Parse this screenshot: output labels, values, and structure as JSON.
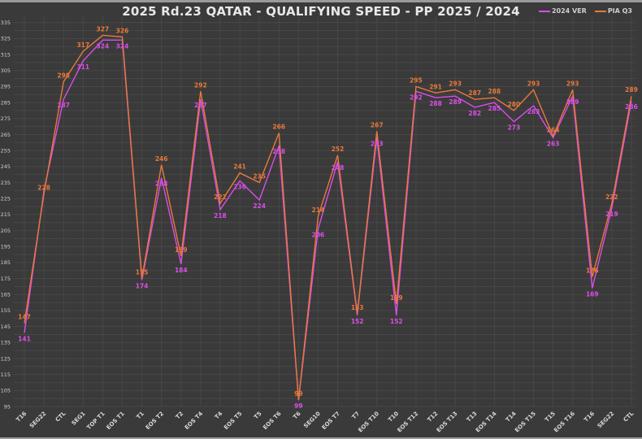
{
  "chart_data": {
    "type": "line",
    "title": "2025 Rd.23 QATAR - QUALIFYING SPEED - PP 2025 / 2024",
    "xlabel": "",
    "ylabel": "",
    "ylim": [
      95,
      335
    ],
    "yticks": [
      95,
      105,
      115,
      125,
      135,
      145,
      155,
      165,
      175,
      185,
      195,
      205,
      215,
      225,
      235,
      245,
      255,
      265,
      275,
      285,
      295,
      305,
      315,
      325,
      335
    ],
    "grid": true,
    "legend_position": "top-right",
    "categories": [
      "T16",
      "SEG22",
      "CTL",
      "SEG1",
      "TOP T1",
      "EOS T1",
      "T1",
      "EOS T2",
      "T2",
      "EOS T4",
      "T4",
      "EOS T5",
      "T5",
      "EOS T6",
      "T6",
      "SEG10",
      "EOS T7",
      "T7",
      "EOS T10",
      "T10",
      "EOS T12",
      "T12",
      "EOS T13",
      "T13",
      "EOS T14",
      "T14",
      "EOS T15",
      "T15",
      "EOS T16",
      "T16",
      "SEG22",
      "CTL"
    ],
    "series": [
      {
        "name": "2024 VER",
        "color": "#d94ee8",
        "values": [
          141,
          230,
          287,
          311,
          324,
          324,
          174,
          238,
          184,
          287,
          218,
          236,
          224,
          258,
          99,
          206,
          248,
          152,
          263,
          152,
          292,
          288,
          289,
          282,
          285,
          273,
          283,
          263,
          289,
          169,
          219,
          286
        ],
        "show_label": [
          true,
          false,
          true,
          true,
          true,
          true,
          true,
          true,
          true,
          true,
          true,
          true,
          true,
          true,
          true,
          true,
          true,
          true,
          true,
          true,
          true,
          true,
          true,
          true,
          true,
          true,
          true,
          true,
          true,
          true,
          true,
          true
        ]
      },
      {
        "name": "PIA Q3",
        "color": "#e8793a",
        "values": [
          147,
          228,
          298,
          317,
          327,
          326,
          175,
          246,
          189,
          292,
          222,
          241,
          235,
          266,
          99,
          214,
          252,
          153,
          267,
          159,
          295,
          291,
          293,
          287,
          288,
          280,
          293,
          264,
          293,
          176,
          222,
          289
        ],
        "show_label": [
          true,
          true,
          true,
          true,
          true,
          true,
          true,
          true,
          true,
          true,
          true,
          true,
          true,
          true,
          true,
          true,
          true,
          true,
          true,
          true,
          true,
          true,
          true,
          true,
          true,
          true,
          true,
          true,
          true,
          true,
          true,
          true
        ]
      }
    ]
  }
}
